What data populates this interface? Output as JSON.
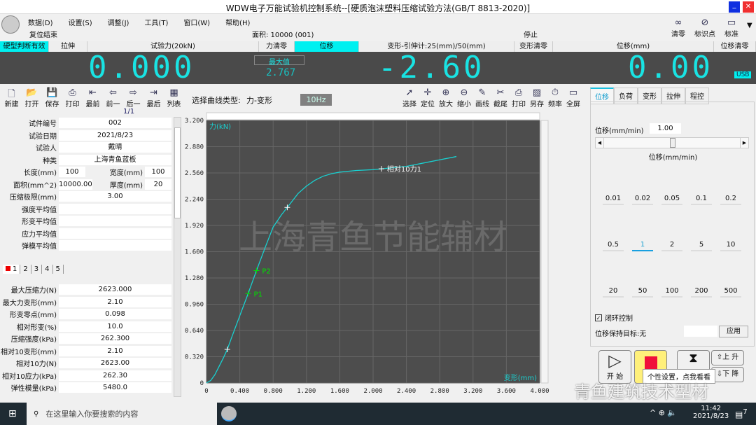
{
  "window": {
    "title": "WDW电子万能试验机控制系统--[硬质泡沫塑料压缩试验方法(GB/T 8813-2020)]"
  },
  "menu": [
    "数据(D)",
    "设置(S)",
    "调整(J)",
    "工具(T)",
    "窗口(W)",
    "帮助(H)"
  ],
  "status": {
    "reset": "复位结束",
    "area": "面积: 10000 (001)",
    "state": "停止"
  },
  "top_tools": [
    {
      "icon": "link-icon",
      "label": "清零"
    },
    {
      "icon": "mark-point-icon",
      "label": "标识点"
    },
    {
      "icon": "window-icon",
      "label": "标准"
    }
  ],
  "label_bar": [
    "硬型判断有效",
    "拉伸",
    "试验力(20kN)",
    "力清零",
    "位移",
    "变形-引伸计:25(mm)/50(mm)",
    "变形清零",
    "位移(mm)",
    "位移清零"
  ],
  "display": {
    "force": "0.000",
    "max_label": "最大值",
    "max_value": "2.767",
    "deform": "-2.60",
    "displacement": "0.00",
    "usb": "USB"
  },
  "toolbar_left": [
    {
      "icon": "new-icon",
      "label": "新建"
    },
    {
      "icon": "open-icon",
      "label": "打开"
    },
    {
      "icon": "save-icon",
      "label": "保存"
    },
    {
      "icon": "print-icon",
      "label": "打印"
    },
    {
      "icon": "first-icon",
      "label": "最前"
    },
    {
      "icon": "prev-icon",
      "label": "前一"
    },
    {
      "icon": "next-icon",
      "label": "后一"
    },
    {
      "icon": "last-icon",
      "label": "最后"
    },
    {
      "icon": "list-icon",
      "label": "列表"
    }
  ],
  "page_indicator": "1/1",
  "curve_type": {
    "label": "选择曲线类型:",
    "value": "力-变形",
    "freq": "10Hz"
  },
  "toolbar_chart": [
    {
      "icon": "select-icon",
      "label": "选择"
    },
    {
      "icon": "locate-icon",
      "label": "定位"
    },
    {
      "icon": "zoom-in-icon",
      "label": "放大"
    },
    {
      "icon": "zoom-out-icon",
      "label": "缩小"
    },
    {
      "icon": "pencil-icon",
      "label": "画线"
    },
    {
      "icon": "scissors-icon",
      "label": "截尾"
    },
    {
      "icon": "print-icon",
      "label": "打印"
    },
    {
      "icon": "image-icon",
      "label": "另存"
    },
    {
      "icon": "timer-icon",
      "label": "频率"
    },
    {
      "icon": "fullscreen-icon",
      "label": "全屏"
    }
  ],
  "specimen": [
    {
      "k": "试件编号",
      "v": "002"
    },
    {
      "k": "试验日期",
      "v": "2021/8/23"
    },
    {
      "k": "试验人",
      "v": "戴晴"
    },
    {
      "k": "种类",
      "v": "上海青鱼蓝板"
    }
  ],
  "dims": {
    "length_k": "长度(mm)",
    "length_v": "100",
    "width_k": "宽度(mm)",
    "width_v": "100",
    "area_k": "面积(mm^2)",
    "area_v": "10000.00",
    "thick_k": "厚度(mm)",
    "thick_v": "20"
  },
  "specimen2": [
    {
      "k": "压缩极限(mm)",
      "v": "3.00"
    },
    {
      "k": "强度平均值",
      "v": ""
    },
    {
      "k": "形变平均值",
      "v": ""
    },
    {
      "k": "应力平均值",
      "v": ""
    },
    {
      "k": "弹模平均值",
      "v": ""
    }
  ],
  "result_tabs": [
    "1",
    "2",
    "3",
    "4",
    "5"
  ],
  "results": [
    {
      "k": "最大压缩力(N)",
      "v": "2623.000"
    },
    {
      "k": "最大力变形(mm)",
      "v": "2.10"
    },
    {
      "k": "形变零点(mm)",
      "v": "0.098"
    },
    {
      "k": "相对形变(%)",
      "v": "10.0"
    },
    {
      "k": "压缩强度(kPa)",
      "v": "262.300"
    },
    {
      "k": "相对10变形(mm)",
      "v": "2.10"
    },
    {
      "k": "相对10力(N)",
      "v": "2623.00"
    },
    {
      "k": "相对10应力(kPa)",
      "v": "262.30"
    },
    {
      "k": "弹性模量(kPa)",
      "v": "5480.0"
    }
  ],
  "right_tabs": [
    "位移",
    "负荷",
    "变形",
    "拉伸",
    "程控"
  ],
  "control": {
    "speed_label": "位移(mm/min)",
    "speed_value": "1.00",
    "slider_fraction": 0.5,
    "group_label": "位移(mm/min)",
    "speeds": [
      "0.01",
      "0.02",
      "0.05",
      "0.1",
      "0.2",
      "0.5",
      "1",
      "2",
      "5",
      "10",
      "20",
      "50",
      "100",
      "200",
      "500"
    ],
    "selected": "1",
    "closed_loop": "闭环控制",
    "hold_label": "位移保持目标:无",
    "apply": "应用",
    "start": "开 始",
    "up": "上 升",
    "down": "下 降",
    "tooltip": "个性设置，点我看看"
  },
  "watermark": "上海青鱼节能辅材",
  "overlay_watermark": "青鱼建筑技术型材",
  "chart_data": {
    "type": "line",
    "ylabel": "力(kN)",
    "xlabel": "变形(mm)",
    "xlim": [
      0,
      4.0
    ],
    "ylim": [
      0,
      3.2
    ],
    "xticks": [
      "0",
      "0.400",
      "0.800",
      "1.200",
      "1.600",
      "2.000",
      "2.400",
      "2.800",
      "3.200",
      "3.600",
      "4.000"
    ],
    "yticks": [
      "0",
      "0.320",
      "0.640",
      "0.960",
      "1.280",
      "1.600",
      "1.920",
      "2.240",
      "2.560",
      "2.880",
      "3.200"
    ],
    "x": [
      0,
      0.05,
      0.1,
      0.15,
      0.2,
      0.25,
      0.3,
      0.4,
      0.5,
      0.6,
      0.7,
      0.8,
      0.9,
      0.97,
      1.1,
      1.2,
      1.3,
      1.4,
      1.5,
      1.6,
      1.8,
      2.0,
      2.1,
      2.2,
      2.4,
      2.6,
      2.8,
      3.0
    ],
    "y": [
      0,
      0.03,
      0.1,
      0.2,
      0.3,
      0.41,
      0.55,
      0.82,
      1.09,
      1.37,
      1.64,
      1.9,
      2.05,
      2.14,
      2.31,
      2.4,
      2.47,
      2.52,
      2.55,
      2.57,
      2.59,
      2.6,
      2.61,
      2.62,
      2.64,
      2.68,
      2.72,
      2.76
    ],
    "markers": [
      {
        "x": 0.25,
        "y": 0.41,
        "label": "",
        "color": "#ffffff"
      },
      {
        "x": 0.5,
        "y": 1.09,
        "label": "P1",
        "color": "#00e000"
      },
      {
        "x": 0.6,
        "y": 1.37,
        "label": "P2",
        "color": "#00e000"
      },
      {
        "x": 0.97,
        "y": 2.14,
        "label": "",
        "color": "#ffffff"
      },
      {
        "x": 2.1,
        "y": 2.61,
        "label": "相对10力1",
        "color": "#ffffff"
      }
    ],
    "line_color": "#19d0d0",
    "grid": true
  },
  "taskbar": {
    "search_placeholder": "在这里输入你要搜索的内容",
    "time": "11:42",
    "date": "2021/8/23",
    "notifications": "7"
  }
}
